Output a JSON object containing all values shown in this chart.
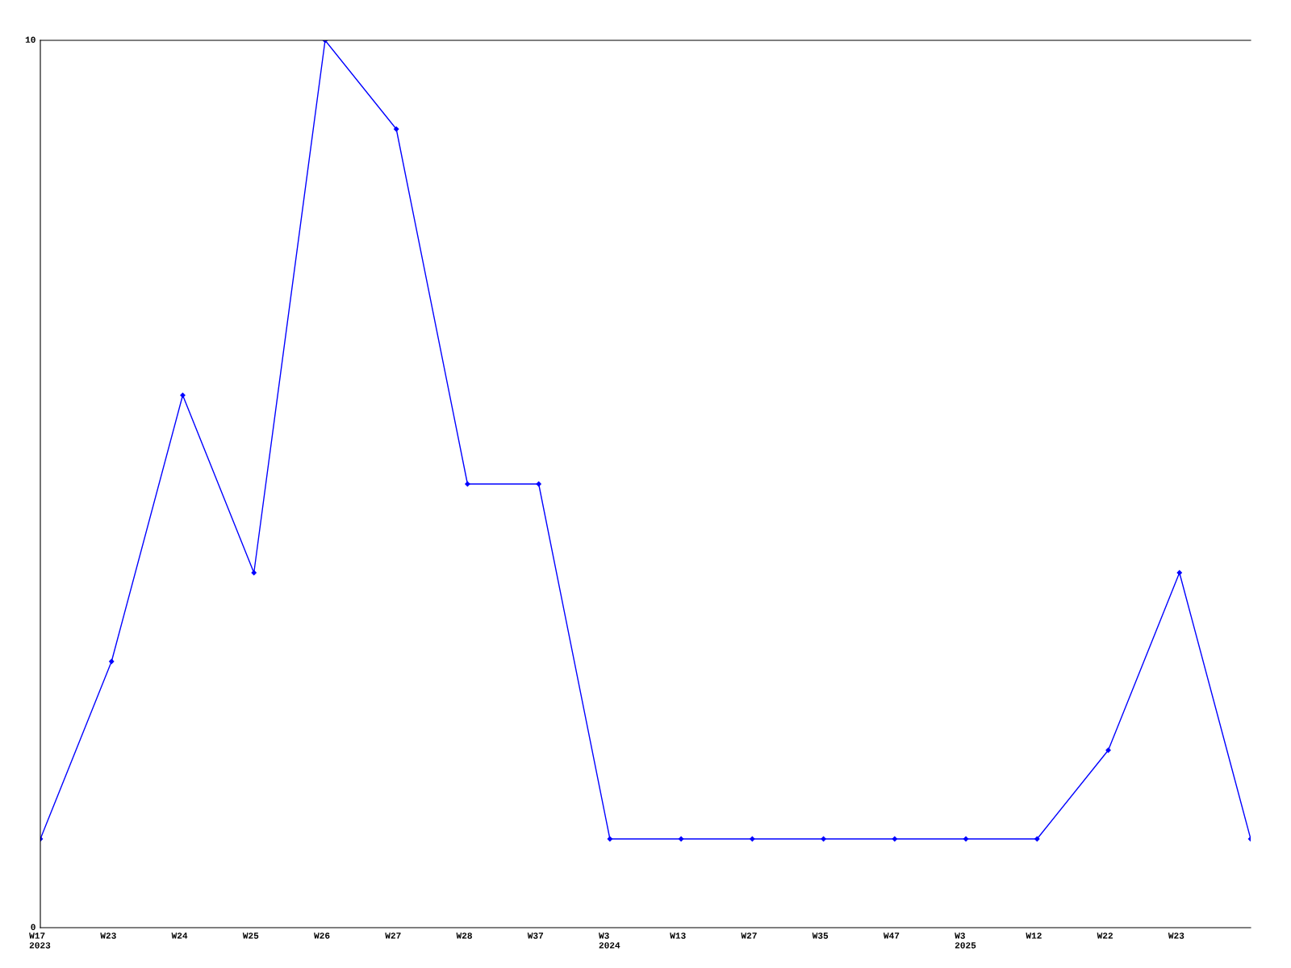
{
  "chart_data": {
    "type": "line",
    "categories": [
      "W17\n2023",
      "W23",
      "W24",
      "W25",
      "W26",
      "W27",
      "W28",
      "W37",
      "W3\n2024",
      "W13",
      "W27",
      "W35",
      "W47",
      "W3\n2025",
      "W12",
      "W22",
      "W23",
      null
    ],
    "series": [
      {
        "color": "#0000ff",
        "values": [
          1,
          3,
          6,
          4,
          10,
          9,
          5,
          5,
          1,
          1,
          1,
          1,
          1,
          1,
          1,
          2,
          4,
          1
        ]
      }
    ],
    "ylim": [
      0,
      10
    ],
    "yticks": [
      0,
      10
    ],
    "grid": false,
    "legend": false,
    "marker": "diamond",
    "line_style": "solid"
  }
}
